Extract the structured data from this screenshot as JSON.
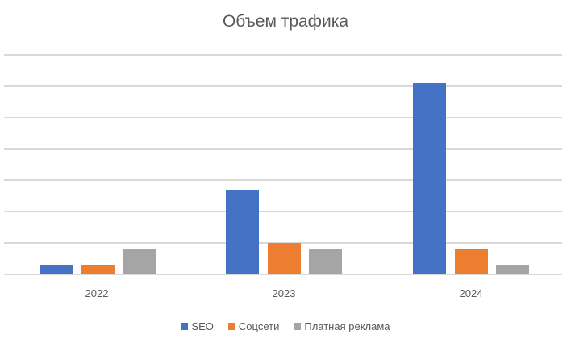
{
  "chart_data": {
    "type": "bar",
    "title": "Объем трафика",
    "xlabel": "",
    "ylabel": "",
    "categories": [
      "2022",
      "2023",
      "2024"
    ],
    "series": [
      {
        "name": "SEO",
        "color": "#4472c4",
        "values": [
          0.3,
          2.7,
          6.1
        ]
      },
      {
        "name": "Соцсети",
        "color": "#ed7d31",
        "values": [
          0.3,
          1.0,
          0.8
        ]
      },
      {
        "name": "Платная реклама",
        "color": "#a5a5a5",
        "values": [
          0.8,
          0.8,
          0.3
        ]
      }
    ],
    "ylim": [
      0,
      7
    ],
    "grid": true,
    "y_tick_labels_visible": false,
    "legend_position": "bottom"
  }
}
